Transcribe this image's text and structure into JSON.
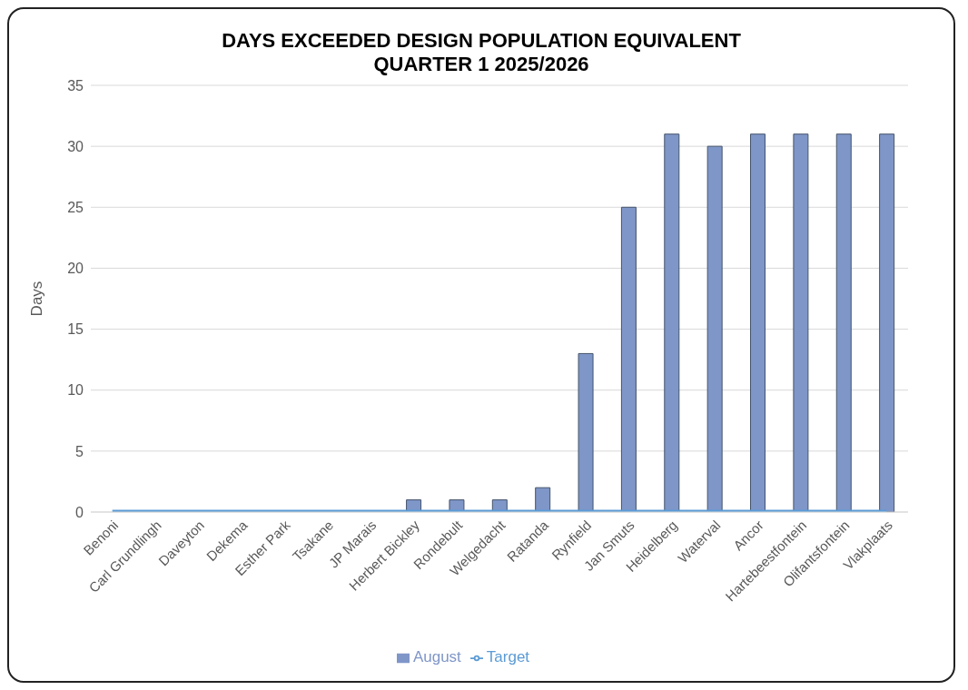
{
  "chart_data": {
    "type": "bar",
    "title": "DAYS EXCEEDED DESIGN POPULATION EQUIVALENT\nQUARTER 1 2025/2026",
    "ylabel": "Days",
    "categories": [
      "Benoni",
      "Carl Grundlingh",
      "Daveyton",
      "Dekema",
      "Esther Park",
      "Tsakane",
      "JP Marais",
      "Herbert Bickley",
      "Rondebult",
      "Welgedacht",
      "Ratanda",
      "Rynfield",
      "Jan Smuts",
      "Heidelberg",
      "Waterval",
      "Ancor",
      "Hartebeestfontein",
      "Olifantsfontein",
      "Vlakplaats"
    ],
    "series": [
      {
        "name": "August",
        "color": "#7f96c8",
        "values": [
          0,
          0,
          0,
          0,
          0,
          0,
          0,
          1,
          1,
          1,
          2,
          13,
          25,
          31,
          30,
          31,
          31,
          31,
          31
        ]
      },
      {
        "name": "Target",
        "type": "line",
        "color": "#5b9bd5",
        "values": [
          0,
          0,
          0,
          0,
          0,
          0,
          0,
          0,
          0,
          0,
          0,
          0,
          0,
          0,
          0,
          0,
          0,
          0,
          0
        ]
      }
    ],
    "ylim": [
      0,
      35
    ],
    "yticks": [
      0,
      5,
      10,
      15,
      20,
      25,
      30,
      35
    ],
    "grid": "y",
    "legend": "bottom",
    "marker": "none"
  }
}
